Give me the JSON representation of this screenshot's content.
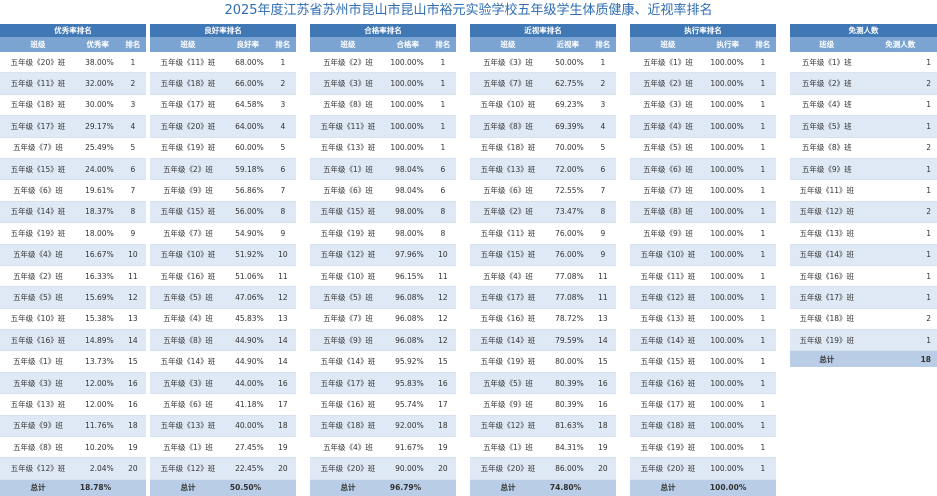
{
  "title": "2025年度江苏省苏州市昆山市昆山市裕元实验学校五年级学生体质健康、近视率排名",
  "tables": [
    {
      "title": "优秀率排名",
      "columns": [
        "班级",
        "优秀率",
        "排名"
      ],
      "rows": [
        [
          "五年级《20》班",
          "38.00%",
          "1"
        ],
        [
          "五年级《11》班",
          "32.00%",
          "2"
        ],
        [
          "五年级《18》班",
          "30.00%",
          "3"
        ],
        [
          "五年级《17》班",
          "29.17%",
          "4"
        ],
        [
          "五年级《7》班",
          "25.49%",
          "5"
        ],
        [
          "五年级《15》班",
          "24.00%",
          "6"
        ],
        [
          "五年级《6》班",
          "19.61%",
          "7"
        ],
        [
          "五年级《14》班",
          "18.37%",
          "8"
        ],
        [
          "五年级《19》班",
          "18.00%",
          "9"
        ],
        [
          "五年级《4》班",
          "16.67%",
          "10"
        ],
        [
          "五年级《2》班",
          "16.33%",
          "11"
        ],
        [
          "五年级《5》班",
          "15.69%",
          "12"
        ],
        [
          "五年级《10》班",
          "15.38%",
          "13"
        ],
        [
          "五年级《16》班",
          "14.89%",
          "14"
        ],
        [
          "五年级《1》班",
          "13.73%",
          "15"
        ],
        [
          "五年级《3》班",
          "12.00%",
          "16"
        ],
        [
          "五年级《13》班",
          "12.00%",
          "16"
        ],
        [
          "五年级《9》班",
          "11.76%",
          "18"
        ],
        [
          "五年级《8》班",
          "10.20%",
          "19"
        ],
        [
          "五年级《12》班",
          "2.04%",
          "20"
        ]
      ],
      "total": {
        "label": "总计",
        "value": "18.78%"
      }
    },
    {
      "title": "良好率排名",
      "columns": [
        "班级",
        "良好率",
        "排名"
      ],
      "rows": [
        [
          "五年级《11》班",
          "68.00%",
          "1"
        ],
        [
          "五年级《18》班",
          "66.00%",
          "2"
        ],
        [
          "五年级《17》班",
          "64.58%",
          "3"
        ],
        [
          "五年级《20》班",
          "64.00%",
          "4"
        ],
        [
          "五年级《19》班",
          "60.00%",
          "5"
        ],
        [
          "五年级《2》班",
          "59.18%",
          "6"
        ],
        [
          "五年级《9》班",
          "56.86%",
          "7"
        ],
        [
          "五年级《15》班",
          "56.00%",
          "8"
        ],
        [
          "五年级《7》班",
          "54.90%",
          "9"
        ],
        [
          "五年级《10》班",
          "51.92%",
          "10"
        ],
        [
          "五年级《16》班",
          "51.06%",
          "11"
        ],
        [
          "五年级《5》班",
          "47.06%",
          "12"
        ],
        [
          "五年级《4》班",
          "45.83%",
          "13"
        ],
        [
          "五年级《8》班",
          "44.90%",
          "14"
        ],
        [
          "五年级《14》班",
          "44.90%",
          "14"
        ],
        [
          "五年级《3》班",
          "44.00%",
          "16"
        ],
        [
          "五年级《6》班",
          "41.18%",
          "17"
        ],
        [
          "五年级《13》班",
          "40.00%",
          "18"
        ],
        [
          "五年级《1》班",
          "27.45%",
          "19"
        ],
        [
          "五年级《12》班",
          "22.45%",
          "20"
        ]
      ],
      "total": {
        "label": "总计",
        "value": "50.50%"
      }
    },
    {
      "title": "合格率排名",
      "columns": [
        "班级",
        "合格率",
        "排名"
      ],
      "rows": [
        [
          "五年级《2》班",
          "100.00%",
          "1"
        ],
        [
          "五年级《3》班",
          "100.00%",
          "1"
        ],
        [
          "五年级《8》班",
          "100.00%",
          "1"
        ],
        [
          "五年级《11》班",
          "100.00%",
          "1"
        ],
        [
          "五年级《13》班",
          "100.00%",
          "1"
        ],
        [
          "五年级《1》班",
          "98.04%",
          "6"
        ],
        [
          "五年级《6》班",
          "98.04%",
          "6"
        ],
        [
          "五年级《15》班",
          "98.00%",
          "8"
        ],
        [
          "五年级《19》班",
          "98.00%",
          "8"
        ],
        [
          "五年级《12》班",
          "97.96%",
          "10"
        ],
        [
          "五年级《10》班",
          "96.15%",
          "11"
        ],
        [
          "五年级《5》班",
          "96.08%",
          "12"
        ],
        [
          "五年级《7》班",
          "96.08%",
          "12"
        ],
        [
          "五年级《9》班",
          "96.08%",
          "12"
        ],
        [
          "五年级《14》班",
          "95.92%",
          "15"
        ],
        [
          "五年级《17》班",
          "95.83%",
          "16"
        ],
        [
          "五年级《16》班",
          "95.74%",
          "17"
        ],
        [
          "五年级《18》班",
          "92.00%",
          "18"
        ],
        [
          "五年级《4》班",
          "91.67%",
          "19"
        ],
        [
          "五年级《20》班",
          "90.00%",
          "20"
        ]
      ],
      "total": {
        "label": "总计",
        "value": "96.79%"
      }
    },
    {
      "title": "近视率排名",
      "columns": [
        "班级",
        "近视率",
        "排名"
      ],
      "rows": [
        [
          "五年级《3》班",
          "50.00%",
          "1"
        ],
        [
          "五年级《7》班",
          "62.75%",
          "2"
        ],
        [
          "五年级《10》班",
          "69.23%",
          "3"
        ],
        [
          "五年级《8》班",
          "69.39%",
          "4"
        ],
        [
          "五年级《18》班",
          "70.00%",
          "5"
        ],
        [
          "五年级《13》班",
          "72.00%",
          "6"
        ],
        [
          "五年级《6》班",
          "72.55%",
          "7"
        ],
        [
          "五年级《2》班",
          "73.47%",
          "8"
        ],
        [
          "五年级《11》班",
          "76.00%",
          "9"
        ],
        [
          "五年级《15》班",
          "76.00%",
          "9"
        ],
        [
          "五年级《4》班",
          "77.08%",
          "11"
        ],
        [
          "五年级《17》班",
          "77.08%",
          "11"
        ],
        [
          "五年级《16》班",
          "78.72%",
          "13"
        ],
        [
          "五年级《14》班",
          "79.59%",
          "14"
        ],
        [
          "五年级《19》班",
          "80.00%",
          "15"
        ],
        [
          "五年级《5》班",
          "80.39%",
          "16"
        ],
        [
          "五年级《9》班",
          "80.39%",
          "16"
        ],
        [
          "五年级《12》班",
          "81.63%",
          "18"
        ],
        [
          "五年级《1》班",
          "84.31%",
          "19"
        ],
        [
          "五年级《20》班",
          "86.00%",
          "20"
        ]
      ],
      "total": {
        "label": "总计",
        "value": "74.80%"
      }
    },
    {
      "title": "执行率排名",
      "columns": [
        "班级",
        "执行率",
        "排名"
      ],
      "rows": [
        [
          "五年级《1》班",
          "100.00%",
          "1"
        ],
        [
          "五年级《2》班",
          "100.00%",
          "1"
        ],
        [
          "五年级《3》班",
          "100.00%",
          "1"
        ],
        [
          "五年级《4》班",
          "100.00%",
          "1"
        ],
        [
          "五年级《5》班",
          "100.00%",
          "1"
        ],
        [
          "五年级《6》班",
          "100.00%",
          "1"
        ],
        [
          "五年级《7》班",
          "100.00%",
          "1"
        ],
        [
          "五年级《8》班",
          "100.00%",
          "1"
        ],
        [
          "五年级《9》班",
          "100.00%",
          "1"
        ],
        [
          "五年级《10》班",
          "100.00%",
          "1"
        ],
        [
          "五年级《11》班",
          "100.00%",
          "1"
        ],
        [
          "五年级《12》班",
          "100.00%",
          "1"
        ],
        [
          "五年级《13》班",
          "100.00%",
          "1"
        ],
        [
          "五年级《14》班",
          "100.00%",
          "1"
        ],
        [
          "五年级《15》班",
          "100.00%",
          "1"
        ],
        [
          "五年级《16》班",
          "100.00%",
          "1"
        ],
        [
          "五年级《17》班",
          "100.00%",
          "1"
        ],
        [
          "五年级《18》班",
          "100.00%",
          "1"
        ],
        [
          "五年级《19》班",
          "100.00%",
          "1"
        ],
        [
          "五年级《20》班",
          "100.00%",
          "1"
        ]
      ],
      "total": {
        "label": "总计",
        "value": "100.00%"
      }
    },
    {
      "title": "免测人数",
      "columns": [
        "班级",
        "免测人数"
      ],
      "rows": [
        [
          "五年级《1》班",
          "1"
        ],
        [
          "五年级《2》班",
          "2"
        ],
        [
          "五年级《4》班",
          "1"
        ],
        [
          "五年级《5》班",
          "1"
        ],
        [
          "五年级《8》班",
          "2"
        ],
        [
          "五年级《9》班",
          "1"
        ],
        [
          "五年级《11》班",
          "1"
        ],
        [
          "五年级《12》班",
          "2"
        ],
        [
          "五年级《13》班",
          "1"
        ],
        [
          "五年级《14》班",
          "1"
        ],
        [
          "五年级《16》班",
          "1"
        ],
        [
          "五年级《17》班",
          "1"
        ],
        [
          "五年级《18》班",
          "2"
        ],
        [
          "五年级《19》班",
          "1"
        ]
      ],
      "total": {
        "label": "总计",
        "value": "18"
      }
    }
  ]
}
